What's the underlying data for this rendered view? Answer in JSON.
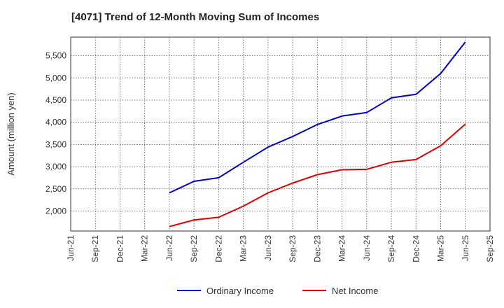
{
  "chart_data": {
    "type": "line",
    "title": "[4071]  Trend of 12-Month Moving Sum of Incomes",
    "xlabel": "",
    "ylabel": "Amount (million yen)",
    "categories": [
      "Jun-21",
      "Sep-21",
      "Dec-21",
      "Mar-22",
      "Jun-22",
      "Sep-22",
      "Dec-22",
      "Mar-23",
      "Jun-23",
      "Sep-23",
      "Dec-23",
      "Mar-24",
      "Jun-24",
      "Sep-24",
      "Dec-24",
      "Mar-25",
      "Jun-25",
      "Sep-25"
    ],
    "ylim": [
      1550,
      5920
    ],
    "yticks": [
      2000,
      2500,
      3000,
      3500,
      4000,
      4500,
      5000,
      5500
    ],
    "ytick_labels": [
      "2,000",
      "2,500",
      "3,000",
      "3,500",
      "4,000",
      "4,500",
      "5,000",
      "5,500"
    ],
    "grid": true,
    "legend_position": "bottom-center",
    "series": [
      {
        "name": "Ordinary Income",
        "color": "#0000cc",
        "values": [
          null,
          null,
          null,
          null,
          2410,
          2670,
          2750,
          3100,
          3440,
          3680,
          3950,
          4140,
          4220,
          4550,
          4630,
          5100,
          5810,
          null
        ]
      },
      {
        "name": "Net Income",
        "color": "#e00000",
        "values": [
          null,
          null,
          null,
          null,
          1650,
          1800,
          1860,
          2110,
          2410,
          2630,
          2820,
          2930,
          2940,
          3100,
          3160,
          3470,
          3960,
          null
        ]
      }
    ]
  }
}
